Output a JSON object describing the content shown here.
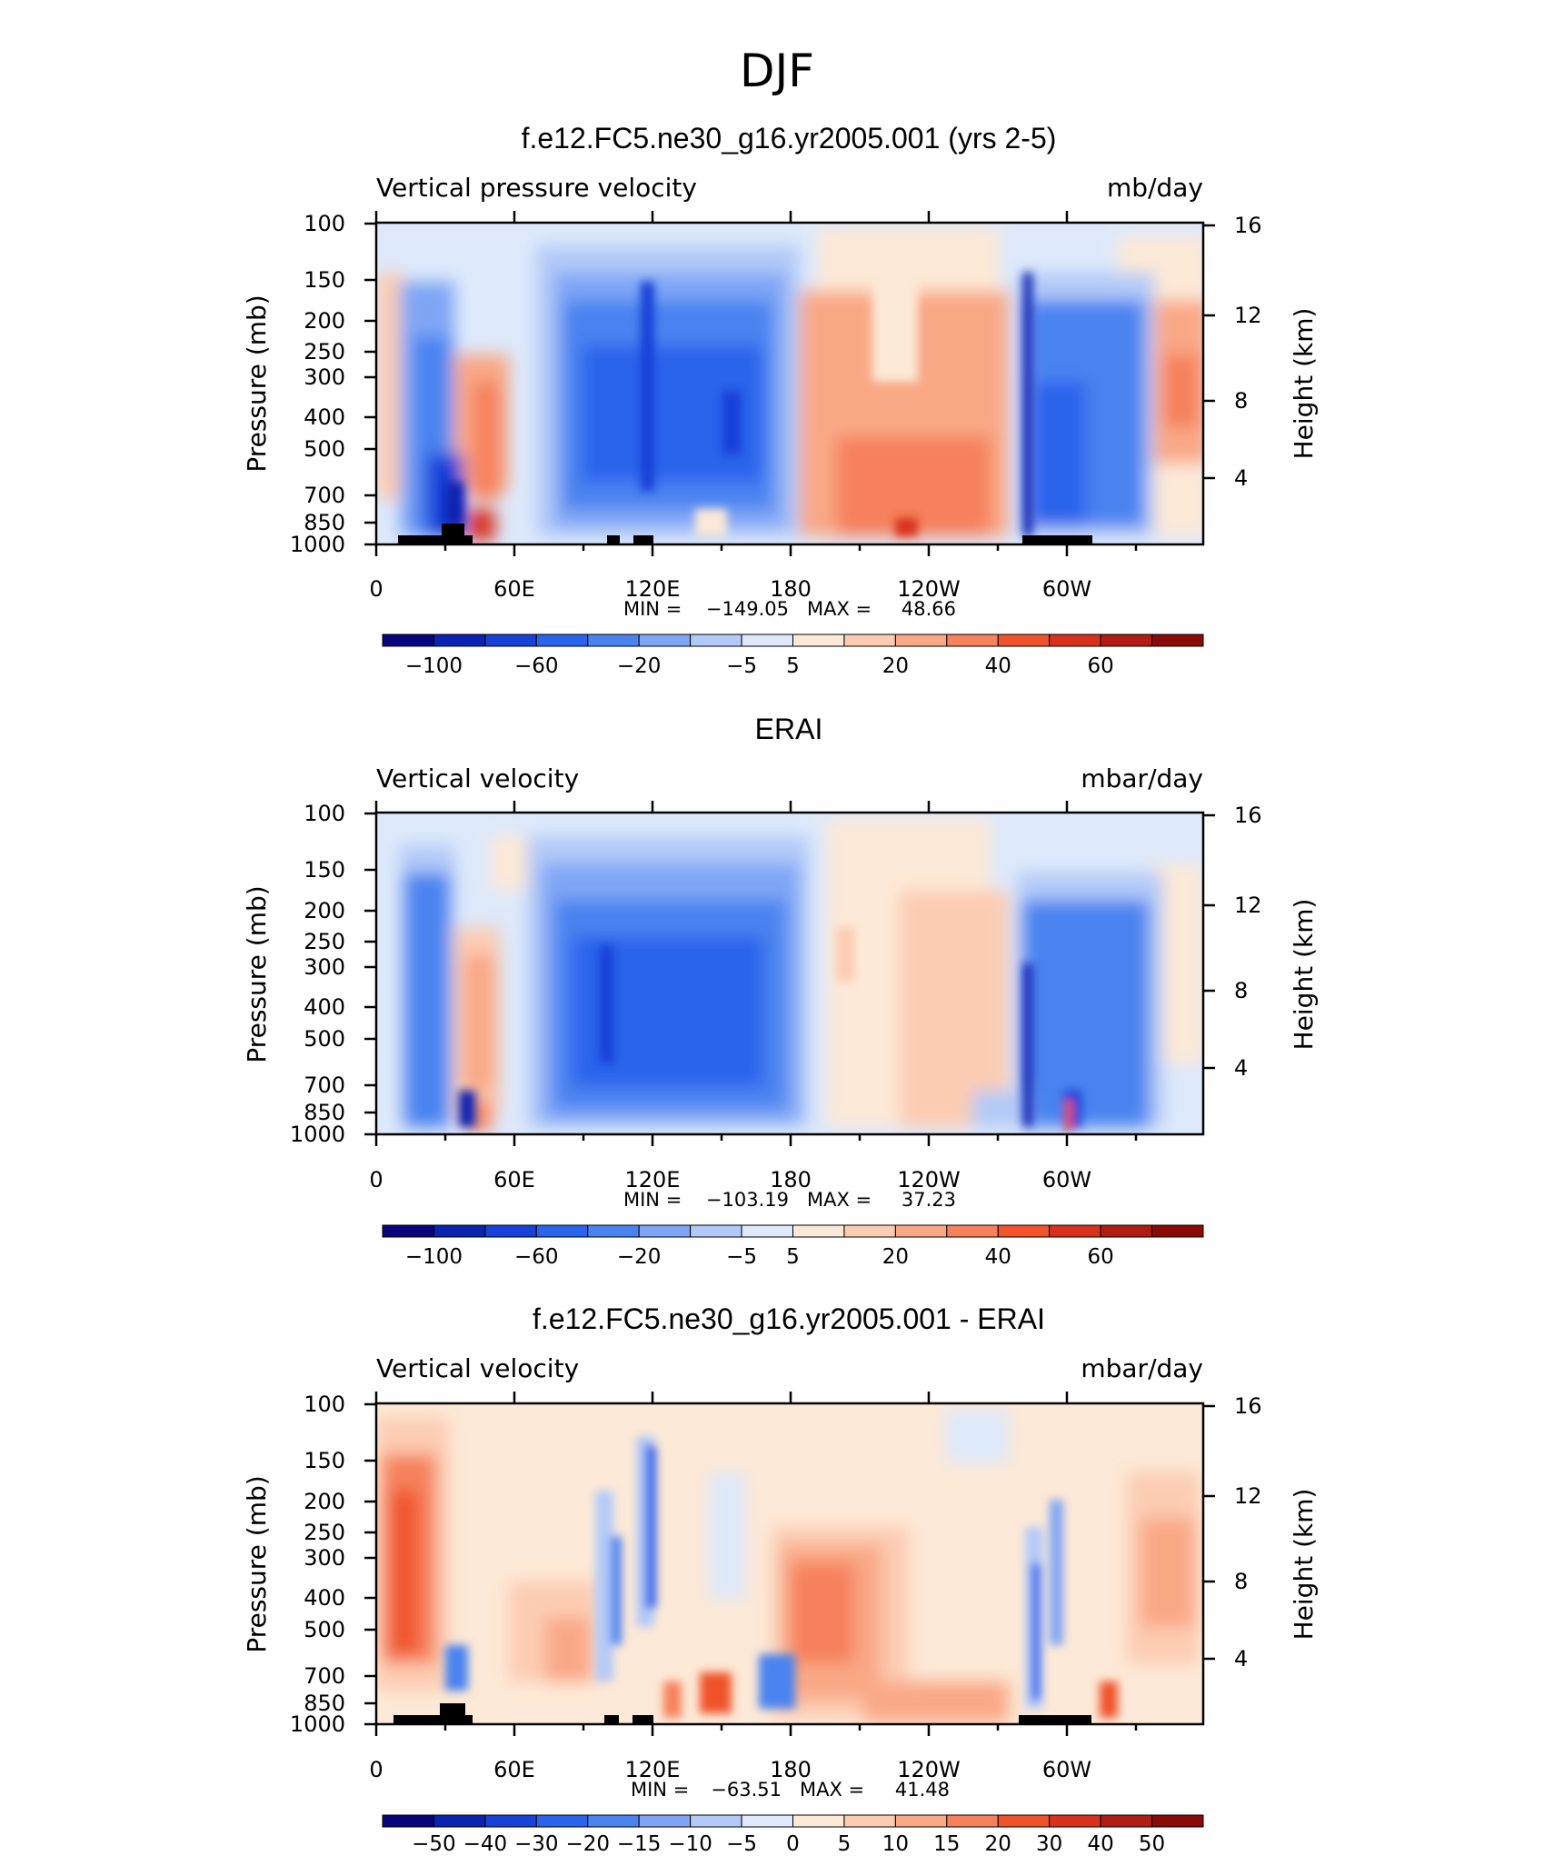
{
  "figure": {
    "title": "DJF"
  },
  "chart_data": [
    {
      "type": "heatmap",
      "panel": "model",
      "title": "f.e12.FC5.ne30_g16.yr2005.001 (yrs 2-5)",
      "left_label": "Vertical pressure velocity",
      "right_label": "mb/day",
      "ylabel": "Pressure (mb)",
      "ylabel_right": "Height (km)",
      "y_ticks": [
        "100",
        "150",
        "200",
        "250",
        "300",
        "400",
        "500",
        "700",
        "850",
        "1000"
      ],
      "y_ticks_right": [
        "16",
        "12",
        "8",
        "4"
      ],
      "x_ticks": [
        "0",
        "60E",
        "120E",
        "180",
        "120W",
        "60W"
      ],
      "min_label": "MIN =",
      "min_value": "−149.05",
      "max_label": "MAX =",
      "max_value": "48.66",
      "colorbar_labels": [
        "−100",
        "−60",
        "−20",
        "−5",
        "5",
        "20",
        "40",
        "60"
      ]
    },
    {
      "type": "heatmap",
      "panel": "obs",
      "title": "ERAI",
      "left_label": "Vertical velocity",
      "right_label": "mbar/day",
      "ylabel": "Pressure (mb)",
      "ylabel_right": "Height (km)",
      "y_ticks": [
        "100",
        "150",
        "200",
        "250",
        "300",
        "400",
        "500",
        "700",
        "850",
        "1000"
      ],
      "y_ticks_right": [
        "16",
        "12",
        "8",
        "4"
      ],
      "x_ticks": [
        "0",
        "60E",
        "120E",
        "180",
        "120W",
        "60W"
      ],
      "min_label": "MIN =",
      "min_value": "−103.19",
      "max_label": "MAX =",
      "max_value": "37.23",
      "colorbar_labels": [
        "−100",
        "−60",
        "−20",
        "−5",
        "5",
        "20",
        "40",
        "60"
      ]
    },
    {
      "type": "heatmap",
      "panel": "diff",
      "title": "f.e12.FC5.ne30_g16.yr2005.001 - ERAI",
      "left_label": "Vertical velocity",
      "right_label": "mbar/day",
      "ylabel": "Pressure (mb)",
      "ylabel_right": "Height (km)",
      "y_ticks": [
        "100",
        "150",
        "200",
        "250",
        "300",
        "400",
        "500",
        "700",
        "850",
        "1000"
      ],
      "y_ticks_right": [
        "16",
        "12",
        "8",
        "4"
      ],
      "x_ticks": [
        "0",
        "60E",
        "120E",
        "180",
        "120W",
        "60W"
      ],
      "min_label": "MIN =",
      "min_value": "−63.51",
      "max_label": "MAX =",
      "max_value": "41.48",
      "colorbar_labels": [
        "−50",
        "−40",
        "−30",
        "−20",
        "−15",
        "−10",
        "−5",
        "0",
        "5",
        "10",
        "15",
        "20",
        "30",
        "40",
        "50"
      ]
    }
  ],
  "colors": {
    "palette": [
      "#08057c",
      "#0a23b0",
      "#1741d7",
      "#2a64ec",
      "#4a83f0",
      "#7fa6f5",
      "#b3caf8",
      "#dde9fb",
      "#fde9d7",
      "#fcccb2",
      "#f9a886",
      "#f6815b",
      "#f0522c",
      "#d8321c",
      "#b01d12",
      "#8a0a08"
    ]
  }
}
